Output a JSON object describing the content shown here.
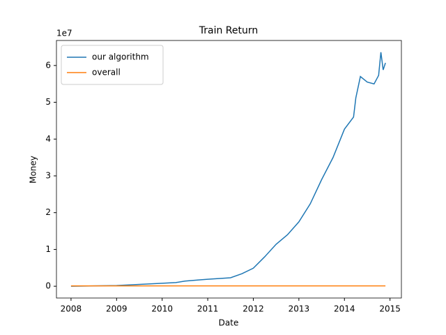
{
  "chart_data": {
    "type": "line",
    "title": "Train Return",
    "x_label": "Date",
    "y_label": "Money",
    "y_offset_label": "1e7",
    "x": [
      2008.0,
      2008.5,
      2009.0,
      2009.5,
      2010.0,
      2010.3,
      2010.5,
      2010.8,
      2011.0,
      2011.5,
      2011.75,
      2012.0,
      2012.25,
      2012.5,
      2012.75,
      2013.0,
      2013.25,
      2013.5,
      2013.75,
      2014.0,
      2014.2,
      2014.25,
      2014.35,
      2014.5,
      2014.65,
      2014.75,
      2014.8,
      2014.85,
      2014.9
    ],
    "series": [
      {
        "name": "our algorithm",
        "color": "#1f77b4",
        "values": [
          0,
          0.01,
          0.02,
          0.05,
          0.08,
          0.1,
          0.14,
          0.17,
          0.19,
          0.23,
          0.34,
          0.49,
          0.8,
          1.14,
          1.4,
          1.75,
          2.24,
          2.9,
          3.5,
          4.27,
          4.6,
          5.12,
          5.7,
          5.55,
          5.5,
          5.73,
          6.36,
          5.88,
          6.07
        ]
      },
      {
        "name": "overall",
        "color": "#ff7f0e",
        "values": [
          0.01,
          0.01,
          0.01,
          0.01,
          0.01,
          0.01,
          0.01,
          0.01,
          0.01,
          0.01,
          0.01,
          0.01,
          0.01,
          0.01,
          0.01,
          0.01,
          0.01,
          0.01,
          0.01,
          0.01,
          0.01,
          0.01,
          0.01,
          0.01,
          0.01,
          0.01,
          0.01,
          0.01,
          0.01
        ]
      }
    ],
    "xlim": [
      2007.68,
      2015.25
    ],
    "xticks": [
      2008,
      2009,
      2010,
      2011,
      2012,
      2013,
      2014,
      2015
    ],
    "ylim": [
      -0.32,
      6.68
    ],
    "yticks": [
      0,
      1,
      2,
      3,
      4,
      5,
      6
    ],
    "legend": "upper-left",
    "grid": false
  }
}
